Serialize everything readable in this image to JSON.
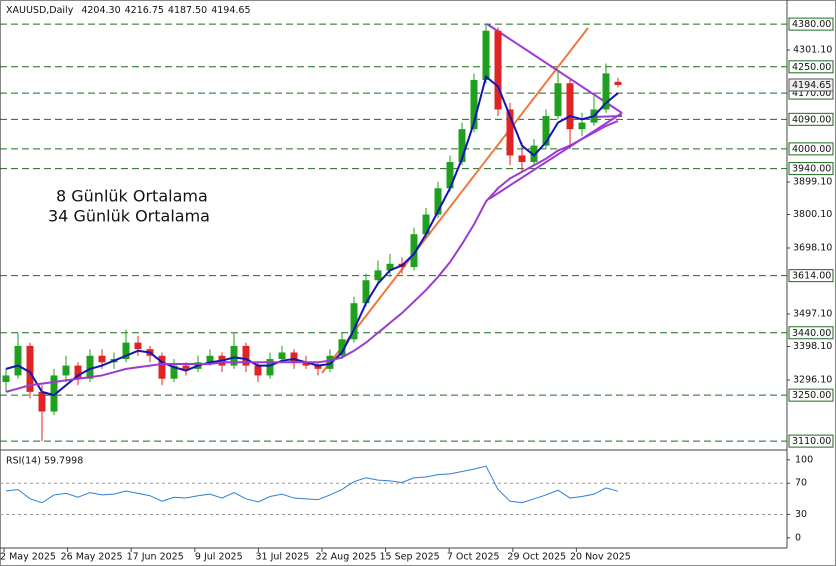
{
  "chart_data": {
    "type": "candlestick",
    "header": {
      "symbol": "XAUUSD,Daily",
      "ohlc_labels": [
        "4204.30",
        "4216.75",
        "4187.50",
        "4194.65"
      ]
    },
    "x_labels": [
      "2 May 2025",
      "26 May 2025",
      "17 Jun 2025",
      "9 Jul 2025",
      "31 Jul 2025",
      "22 Aug 2025",
      "15 Sep 2025",
      "7 Oct 2025",
      "29 Oct 2025",
      "20 Nov 2025"
    ],
    "open": [
      3290,
      3310,
      3400,
      3260,
      3200,
      3310,
      3340,
      3300,
      3370,
      3350,
      3360,
      3410,
      3390,
      3370,
      3300,
      3340,
      3330,
      3350,
      3370,
      3340,
      3400,
      3340,
      3310,
      3360,
      3380,
      3350,
      3340,
      3330,
      3370,
      3420,
      3530,
      3600,
      3630,
      3650,
      3640,
      3740,
      3800,
      3880,
      3960,
      4060,
      4210,
      4360,
      4120,
      3980,
      3960,
      4010,
      4100,
      4200,
      4060,
      4080,
      4120,
      4204.3
    ],
    "high": [
      3330,
      3440,
      3410,
      3280,
      3330,
      3370,
      3350,
      3390,
      3390,
      3380,
      3450,
      3430,
      3400,
      3380,
      3360,
      3350,
      3370,
      3390,
      3380,
      3440,
      3410,
      3350,
      3380,
      3400,
      3390,
      3370,
      3350,
      3390,
      3440,
      3550,
      3620,
      3660,
      3680,
      3670,
      3760,
      3820,
      3900,
      3980,
      4080,
      4230,
      4380,
      4370,
      4140,
      4020,
      4030,
      4120,
      4240,
      4210,
      4110,
      4160,
      4260,
      4216.75
    ],
    "low": [
      3260,
      3300,
      3240,
      3110,
      3190,
      3290,
      3280,
      3290,
      3330,
      3330,
      3350,
      3370,
      3350,
      3280,
      3290,
      3310,
      3320,
      3340,
      3320,
      3330,
      3320,
      3290,
      3300,
      3350,
      3330,
      3330,
      3310,
      3320,
      3360,
      3410,
      3520,
      3590,
      3610,
      3620,
      3630,
      3730,
      3790,
      3870,
      3950,
      4050,
      4200,
      4100,
      3950,
      3930,
      3950,
      4000,
      4090,
      4000,
      4040,
      4070,
      4110,
      4187.5
    ],
    "close": [
      3310,
      3400,
      3260,
      3200,
      3310,
      3340,
      3300,
      3370,
      3350,
      3360,
      3410,
      3390,
      3370,
      3300,
      3340,
      3330,
      3350,
      3370,
      3340,
      3400,
      3340,
      3310,
      3360,
      3380,
      3350,
      3340,
      3330,
      3370,
      3420,
      3530,
      3600,
      3630,
      3650,
      3640,
      3740,
      3800,
      3880,
      3960,
      4060,
      4210,
      4360,
      4120,
      3980,
      3960,
      4010,
      4100,
      4200,
      4060,
      4080,
      4120,
      4230,
      4194.65
    ],
    "up_color": "#1fa01f",
    "down_color": "#e02424",
    "series": [
      {
        "name": "8 Günlük Ortalama",
        "color": "#1414b4",
        "values": [
          3330,
          3340,
          3320,
          3260,
          3250,
          3280,
          3310,
          3330,
          3340,
          3355,
          3370,
          3385,
          3380,
          3350,
          3335,
          3325,
          3340,
          3350,
          3355,
          3365,
          3360,
          3340,
          3340,
          3355,
          3360,
          3350,
          3340,
          3345,
          3380,
          3450,
          3530,
          3590,
          3630,
          3645,
          3680,
          3740,
          3810,
          3880,
          3970,
          4080,
          4220,
          4190,
          4100,
          4010,
          3980,
          4020,
          4080,
          4100,
          4090,
          4100,
          4140,
          4170
        ]
      },
      {
        "name": "34 Günlük Ortalama",
        "color": "#9b3bd0",
        "values": [
          3260,
          3270,
          3280,
          3285,
          3290,
          3295,
          3300,
          3305,
          3310,
          3320,
          3330,
          3335,
          3340,
          3345,
          3345,
          3345,
          3345,
          3345,
          3350,
          3350,
          3350,
          3350,
          3350,
          3350,
          3350,
          3350,
          3350,
          3355,
          3365,
          3385,
          3410,
          3440,
          3470,
          3500,
          3535,
          3570,
          3610,
          3655,
          3710,
          3770,
          3840,
          3880,
          3910,
          3930,
          3950,
          3970,
          3995,
          4010,
          4030,
          4050,
          4070,
          4085
        ]
      }
    ],
    "ylim": [
      3089,
      4423
    ],
    "yticks": [
      {
        "value": 4301.1,
        "label": "4301.10"
      },
      {
        "value": 3899.1,
        "label": "3899.10"
      },
      {
        "value": 3800.1,
        "label": "3800.10"
      },
      {
        "value": 3698.1,
        "label": "3698.10"
      },
      {
        "value": 3497.1,
        "label": "3497.10"
      },
      {
        "value": 3398.1,
        "label": "3398.10"
      },
      {
        "value": 3296.1,
        "label": "3296.10"
      }
    ],
    "levels": [
      {
        "value": 4380,
        "label": "4380.00"
      },
      {
        "value": 4250,
        "label": "4250.00"
      },
      {
        "value": 4170,
        "label": "4170.00"
      },
      {
        "value": 4090,
        "label": "4090.00"
      },
      {
        "value": 4000,
        "label": "4000.00"
      },
      {
        "value": 3940,
        "label": "3940.00"
      },
      {
        "value": 3614,
        "label": "3614.00"
      },
      {
        "value": 3440,
        "label": "3440.00"
      },
      {
        "value": 3250,
        "label": "3250.00"
      },
      {
        "value": 3110,
        "label": "3110.00"
      }
    ],
    "level_color": "#1d6b1d",
    "last_price_label": "4194.65",
    "rsi": {
      "title": "RSI(14) 59.7998",
      "color": "#2f7fd6",
      "ylim": [
        -13,
        110
      ],
      "yticks": [
        100,
        70,
        30,
        0
      ],
      "levels": [
        70,
        30
      ],
      "values": [
        60,
        62,
        50,
        45,
        55,
        57,
        52,
        58,
        55,
        56,
        60,
        57,
        54,
        47,
        52,
        51,
        54,
        56,
        51,
        58,
        50,
        46,
        53,
        56,
        51,
        50,
        49,
        55,
        62,
        72,
        77,
        74,
        73,
        71,
        77,
        78,
        81,
        82,
        85,
        88,
        92,
        62,
        47,
        45,
        50,
        55,
        61,
        51,
        53,
        56,
        64,
        59.7998
      ]
    }
  }
}
